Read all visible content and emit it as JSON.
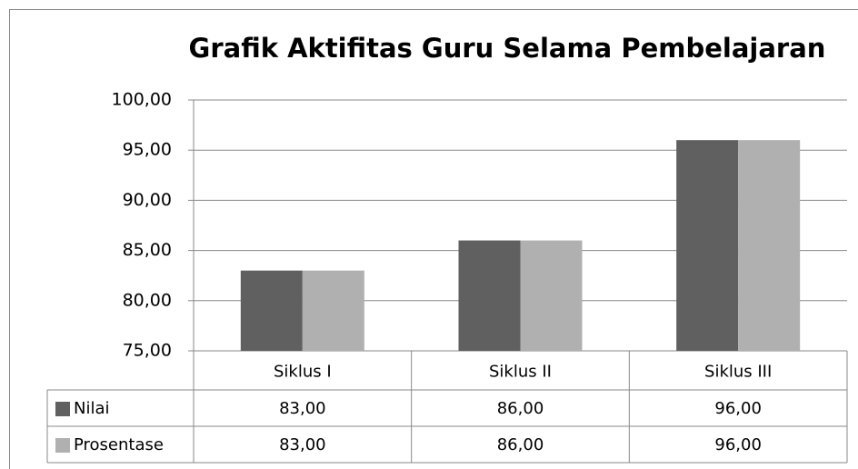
{
  "chart_data": {
    "type": "bar",
    "title": "Grafik Aktifitas  Guru Selama Pembelajaran",
    "categories": [
      "Siklus I",
      "Siklus II",
      "Siklus III"
    ],
    "series": [
      {
        "name": "Nilai",
        "color": "#606060",
        "values": [
          83,
          86,
          96
        ],
        "value_labels": [
          "83,00",
          "86,00",
          "96,00"
        ]
      },
      {
        "name": "Prosentase",
        "color": "#b0b0b0",
        "values": [
          83,
          86,
          96
        ],
        "value_labels": [
          "83,00",
          "86,00",
          "96,00"
        ]
      }
    ],
    "ylim": [
      75,
      100
    ],
    "yticks": [
      {
        "value": 75,
        "label": "75,00"
      },
      {
        "value": 80,
        "label": "80,00"
      },
      {
        "value": 85,
        "label": "85,00"
      },
      {
        "value": 90,
        "label": "90,00"
      },
      {
        "value": 95,
        "label": "95,00"
      },
      {
        "value": 100,
        "label": "100,00"
      }
    ],
    "grid": true
  }
}
